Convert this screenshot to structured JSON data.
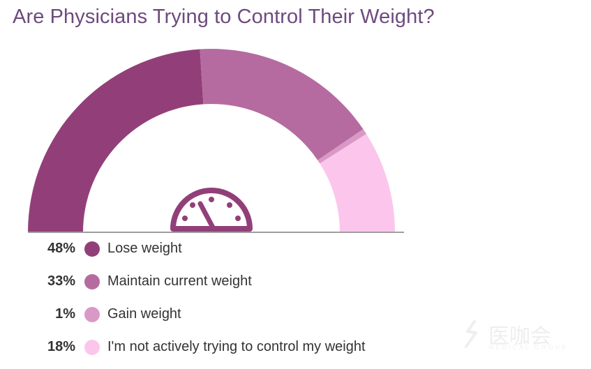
{
  "title": "Are Physicians Trying to Control Their Weight?",
  "chart_data": {
    "type": "pie",
    "variant": "semi-donut gauge",
    "title": "Are Physicians Trying to Control Their Weight?",
    "unit": "%",
    "categories": [
      "Lose weight",
      "Maintain current weight",
      "Gain weight",
      "I'm not actively trying to control my weight"
    ],
    "values": [
      48,
      33,
      1,
      18
    ],
    "labels": [
      "48%",
      "33%",
      "1%",
      "18%"
    ],
    "colors": [
      "#923f79",
      "#b56ba0",
      "#da98c7",
      "#fcc6ec"
    ],
    "legend_position": "bottom-left"
  },
  "gauge_icon": "speedometer-icon",
  "watermark": {
    "text": "医咖会",
    "subtext": "MEDICAL GROUP"
  }
}
